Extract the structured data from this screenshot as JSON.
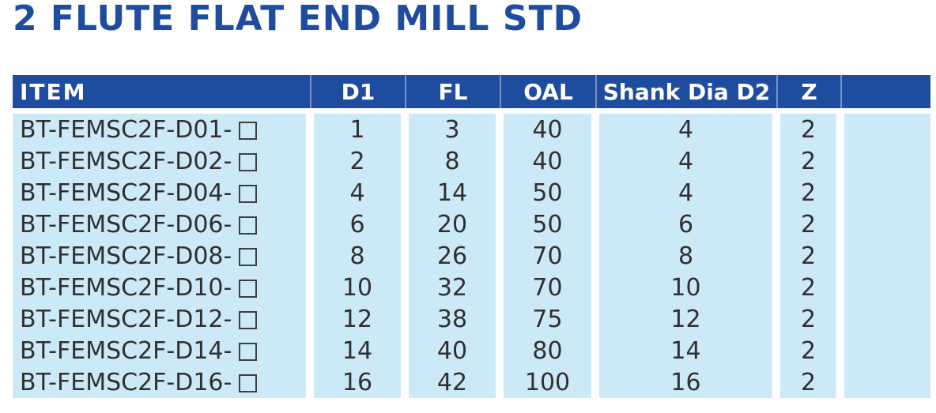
{
  "title": "2 FLUTE FLAT END MILL STD",
  "colors": {
    "title_blue": "#1e4c9e",
    "header_bg": "#1e4c9e",
    "header_text": "#ffffff",
    "row_bg": "#cce9f8",
    "row_text": "#303030"
  },
  "icons": {
    "size_placeholder_box": "□"
  },
  "table": {
    "headers": [
      "ITEM",
      "D1",
      "FL",
      "OAL",
      "Shank Dia D2",
      "Z",
      ""
    ],
    "rows": [
      {
        "item": "BT-FEMSC2F-D01-",
        "d1": "1",
        "fl": "3",
        "oal": "40",
        "shank_dia_d2": "4",
        "z": "2"
      },
      {
        "item": "BT-FEMSC2F-D02-",
        "d1": "2",
        "fl": "8",
        "oal": "40",
        "shank_dia_d2": "4",
        "z": "2"
      },
      {
        "item": "BT-FEMSC2F-D04-",
        "d1": "4",
        "fl": "14",
        "oal": "50",
        "shank_dia_d2": "4",
        "z": "2"
      },
      {
        "item": "BT-FEMSC2F-D06-",
        "d1": "6",
        "fl": "20",
        "oal": "50",
        "shank_dia_d2": "6",
        "z": "2"
      },
      {
        "item": "BT-FEMSC2F-D08-",
        "d1": "8",
        "fl": "26",
        "oal": "70",
        "shank_dia_d2": "8",
        "z": "2"
      },
      {
        "item": "BT-FEMSC2F-D10-",
        "d1": "10",
        "fl": "32",
        "oal": "70",
        "shank_dia_d2": "10",
        "z": "2"
      },
      {
        "item": "BT-FEMSC2F-D12-",
        "d1": "12",
        "fl": "38",
        "oal": "75",
        "shank_dia_d2": "12",
        "z": "2"
      },
      {
        "item": "BT-FEMSC2F-D14-",
        "d1": "14",
        "fl": "40",
        "oal": "80",
        "shank_dia_d2": "14",
        "z": "2"
      },
      {
        "item": "BT-FEMSC2F-D16-",
        "d1": "16",
        "fl": "42",
        "oal": "100",
        "shank_dia_d2": "16",
        "z": "2"
      }
    ]
  }
}
